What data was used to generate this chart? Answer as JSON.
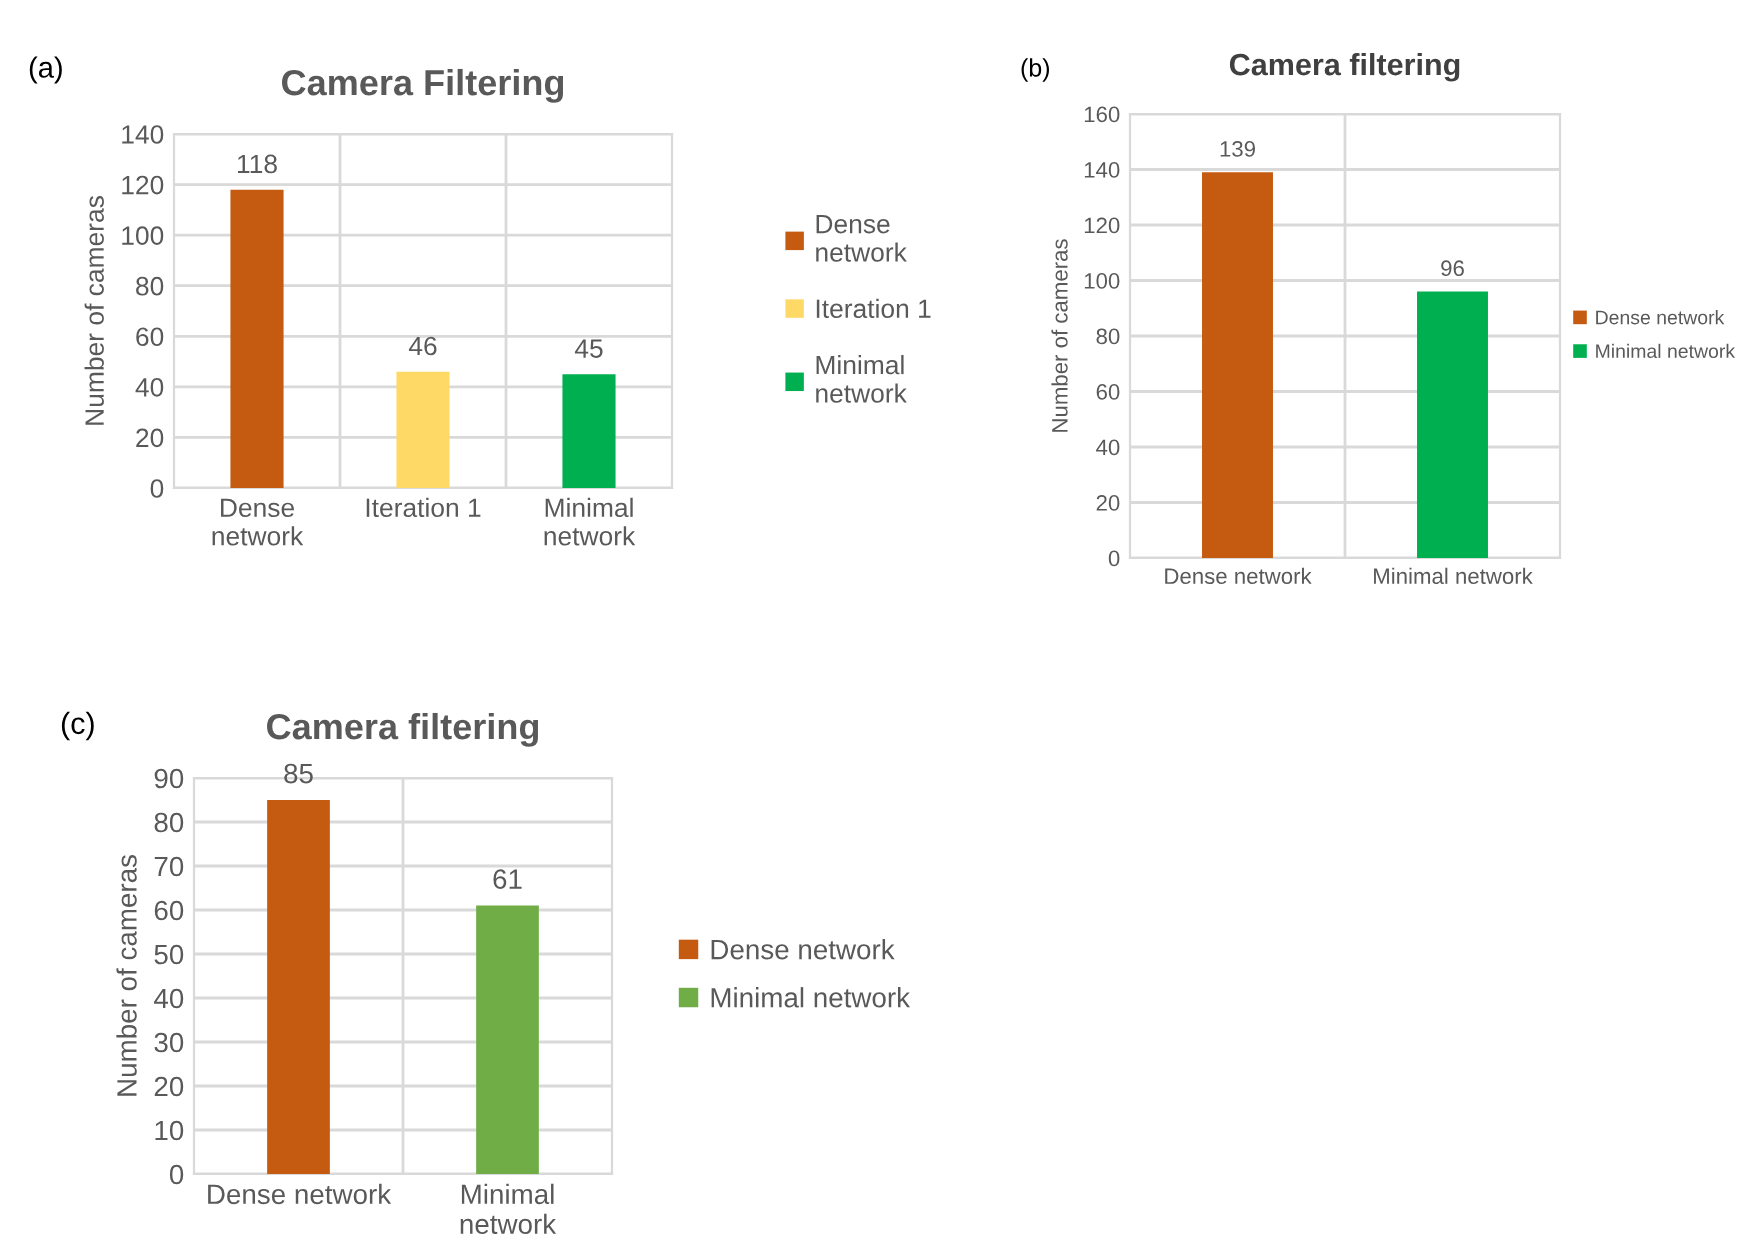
{
  "chart_data": [
    {
      "type": "bar",
      "title": "Camera Filtering",
      "ylabel": "Number of cameras",
      "annotations": [
        "(a)"
      ],
      "categories": [
        "Dense network",
        "Iteration 1",
        "Minimal network"
      ],
      "series": [
        {
          "name": "Dense network",
          "color": "#c55a11",
          "values": [
            118,
            null,
            null
          ]
        },
        {
          "name": "Iteration 1",
          "color": "#ffd966",
          "values": [
            null,
            46,
            null
          ]
        },
        {
          "name": "Minimal network",
          "color": "#00b050",
          "values": [
            null,
            null,
            45
          ]
        }
      ],
      "ylim": [
        0,
        140
      ],
      "yticks": [
        0,
        20,
        40,
        60,
        80,
        100,
        120,
        140
      ],
      "grid": true,
      "legend": "right",
      "data_labels": true
    },
    {
      "type": "bar",
      "title": "Camera filtering",
      "ylabel": "Number of cameras",
      "annotations": [
        "(b)"
      ],
      "categories": [
        "Dense network",
        "Minimal network"
      ],
      "series": [
        {
          "name": "Dense network",
          "color": "#c55a11",
          "values": [
            139,
            null
          ]
        },
        {
          "name": "Minimal network",
          "color": "#00b050",
          "values": [
            null,
            96
          ]
        }
      ],
      "ylim": [
        0,
        160
      ],
      "yticks": [
        0,
        20,
        40,
        60,
        80,
        100,
        120,
        140,
        160
      ],
      "grid": true,
      "legend": "right",
      "data_labels": true
    },
    {
      "type": "bar",
      "title": "Camera filtering",
      "ylabel": "Number of cameras",
      "annotations": [
        "(c)"
      ],
      "categories": [
        "Dense network",
        "Minimal network"
      ],
      "series": [
        {
          "name": "Dense network",
          "color": "#c55a11",
          "values": [
            85,
            null
          ]
        },
        {
          "name": "Minimal network",
          "color": "#70ad47",
          "values": [
            null,
            61
          ]
        }
      ],
      "ylim": [
        0,
        90
      ],
      "yticks": [
        0,
        10,
        20,
        30,
        40,
        50,
        60,
        70,
        80,
        90
      ],
      "grid": true,
      "legend": "right",
      "data_labels": true
    }
  ]
}
